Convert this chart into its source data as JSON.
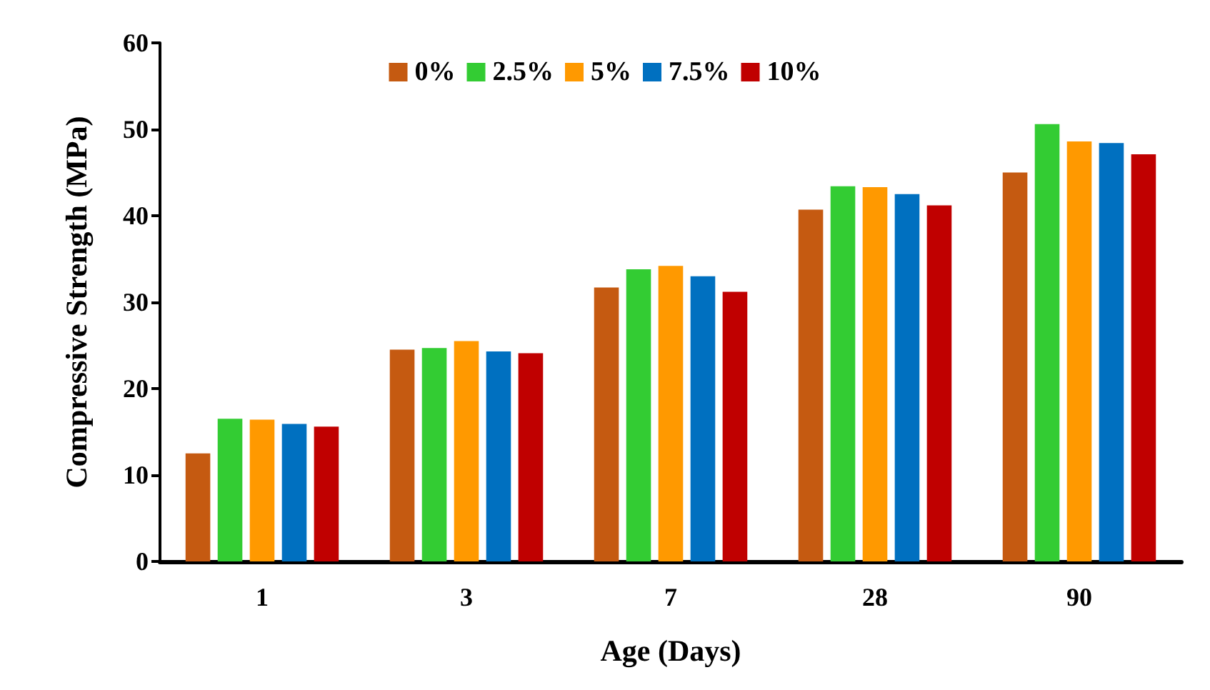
{
  "chart_data": {
    "type": "bar",
    "xlabel": "Age (Days)",
    "ylabel": "Compressive Strength (MPa)",
    "categories": [
      "1",
      "3",
      "7",
      "28",
      "90"
    ],
    "series": [
      {
        "name": "0%",
        "color": "#c55a11",
        "values": [
          12.5,
          24.5,
          31.7,
          40.7,
          45.0
        ]
      },
      {
        "name": "2.5%",
        "color": "#33cc33",
        "values": [
          16.5,
          24.7,
          33.8,
          43.4,
          50.6
        ]
      },
      {
        "name": "5%",
        "color": "#ff9900",
        "values": [
          16.4,
          25.5,
          34.2,
          43.3,
          48.6
        ]
      },
      {
        "name": "7.5%",
        "color": "#0070c0",
        "values": [
          15.9,
          24.3,
          33.0,
          42.5,
          48.4
        ]
      },
      {
        "name": "10%",
        "color": "#c00000",
        "values": [
          15.6,
          24.1,
          31.2,
          41.2,
          47.1
        ]
      }
    ],
    "ylim": [
      0,
      60
    ],
    "yticks": [
      0,
      10,
      20,
      30,
      40,
      50,
      60
    ],
    "grid": false,
    "legend": "top"
  }
}
